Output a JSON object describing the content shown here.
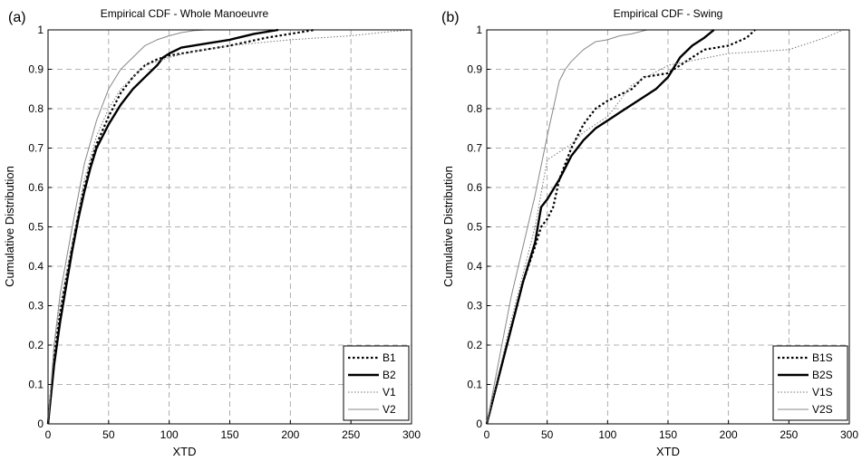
{
  "chart_data": [
    {
      "type": "line",
      "panel_label": "(a)",
      "title": "Empirical CDF - Whole Manoeuvre",
      "xlabel": "XTD",
      "ylabel": "Cumulative Distribution",
      "xlim": [
        0,
        300
      ],
      "ylim": [
        0,
        1
      ],
      "xticks": [
        "0",
        "50",
        "100",
        "150",
        "200",
        "250",
        "300"
      ],
      "yticks": [
        "0",
        "0.1",
        "0.2",
        "0.3",
        "0.4",
        "0.5",
        "0.6",
        "0.7",
        "0.8",
        "0.9",
        "1"
      ],
      "grid": true,
      "legend_position": "bottom-right",
      "series": [
        {
          "name": "B1",
          "style": "dotted-bold",
          "x": [
            0,
            5,
            10,
            15,
            20,
            25,
            30,
            35,
            40,
            50,
            60,
            70,
            80,
            90,
            100,
            120,
            150,
            180,
            200,
            220
          ],
          "y": [
            0,
            0.17,
            0.28,
            0.37,
            0.45,
            0.53,
            0.6,
            0.66,
            0.71,
            0.78,
            0.84,
            0.88,
            0.91,
            0.925,
            0.935,
            0.945,
            0.96,
            0.98,
            0.99,
            1.0
          ]
        },
        {
          "name": "B2",
          "style": "solid-bold",
          "x": [
            0,
            5,
            10,
            15,
            20,
            25,
            30,
            35,
            40,
            50,
            60,
            70,
            80,
            90,
            95,
            100,
            110,
            130,
            150,
            170,
            190
          ],
          "y": [
            0,
            0.15,
            0.26,
            0.35,
            0.44,
            0.52,
            0.59,
            0.65,
            0.7,
            0.76,
            0.81,
            0.85,
            0.88,
            0.91,
            0.93,
            0.94,
            0.955,
            0.965,
            0.975,
            0.99,
            1.0
          ]
        },
        {
          "name": "V1",
          "style": "dotted-thin",
          "x": [
            0,
            5,
            10,
            20,
            30,
            40,
            50,
            60,
            70,
            80,
            100,
            120,
            150,
            200,
            250,
            280,
            300
          ],
          "y": [
            0,
            0.2,
            0.3,
            0.46,
            0.62,
            0.73,
            0.8,
            0.85,
            0.88,
            0.91,
            0.93,
            0.945,
            0.96,
            0.975,
            0.985,
            0.995,
            1.0
          ]
        },
        {
          "name": "V2",
          "style": "solid-thin",
          "x": [
            0,
            5,
            10,
            20,
            30,
            40,
            50,
            60,
            70,
            80,
            90,
            100,
            110,
            120,
            130
          ],
          "y": [
            0,
            0.2,
            0.33,
            0.5,
            0.66,
            0.77,
            0.85,
            0.9,
            0.93,
            0.96,
            0.975,
            0.985,
            0.993,
            0.998,
            1.0
          ]
        }
      ]
    },
    {
      "type": "line",
      "panel_label": "(b)",
      "title": "Empirical CDF - Swing",
      "xlabel": "XTD",
      "ylabel": "Cumulative Distribution",
      "xlim": [
        0,
        300
      ],
      "ylim": [
        0,
        1
      ],
      "xticks": [
        "0",
        "50",
        "100",
        "150",
        "200",
        "250",
        "300"
      ],
      "yticks": [
        "0",
        "0.1",
        "0.2",
        "0.3",
        "0.4",
        "0.5",
        "0.6",
        "0.7",
        "0.8",
        "0.9",
        "1"
      ],
      "grid": true,
      "legend_position": "bottom-right",
      "series": [
        {
          "name": "B1S",
          "style": "dotted-bold",
          "x": [
            0,
            10,
            20,
            30,
            40,
            45,
            50,
            55,
            60,
            70,
            80,
            90,
            100,
            120,
            130,
            140,
            150,
            170,
            180,
            200,
            215,
            222
          ],
          "y": [
            0,
            0.12,
            0.24,
            0.36,
            0.45,
            0.5,
            0.52,
            0.55,
            0.62,
            0.7,
            0.76,
            0.8,
            0.82,
            0.85,
            0.88,
            0.885,
            0.89,
            0.93,
            0.95,
            0.96,
            0.98,
            1.0
          ]
        },
        {
          "name": "B2S",
          "style": "solid-bold",
          "x": [
            0,
            10,
            20,
            30,
            40,
            45,
            50,
            60,
            70,
            80,
            90,
            100,
            110,
            120,
            130,
            140,
            150,
            160,
            170,
            180,
            188
          ],
          "y": [
            0,
            0.12,
            0.24,
            0.36,
            0.46,
            0.55,
            0.57,
            0.62,
            0.68,
            0.72,
            0.75,
            0.77,
            0.79,
            0.81,
            0.83,
            0.85,
            0.88,
            0.93,
            0.96,
            0.98,
            1.0
          ]
        },
        {
          "name": "V1S",
          "style": "dotted-thin",
          "x": [
            0,
            10,
            20,
            30,
            40,
            50,
            60,
            70,
            80,
            90,
            100,
            110,
            120,
            150,
            200,
            250,
            280,
            295
          ],
          "y": [
            0,
            0.13,
            0.26,
            0.38,
            0.5,
            0.67,
            0.69,
            0.71,
            0.74,
            0.76,
            0.78,
            0.82,
            0.86,
            0.91,
            0.94,
            0.95,
            0.98,
            1.0
          ]
        },
        {
          "name": "V2S",
          "style": "solid-thin",
          "x": [
            0,
            10,
            20,
            30,
            40,
            50,
            60,
            65,
            70,
            80,
            90,
            100,
            110,
            120,
            130,
            133
          ],
          "y": [
            0,
            0.16,
            0.32,
            0.45,
            0.58,
            0.73,
            0.87,
            0.9,
            0.92,
            0.95,
            0.97,
            0.975,
            0.985,
            0.99,
            0.998,
            1.0
          ]
        }
      ]
    }
  ]
}
